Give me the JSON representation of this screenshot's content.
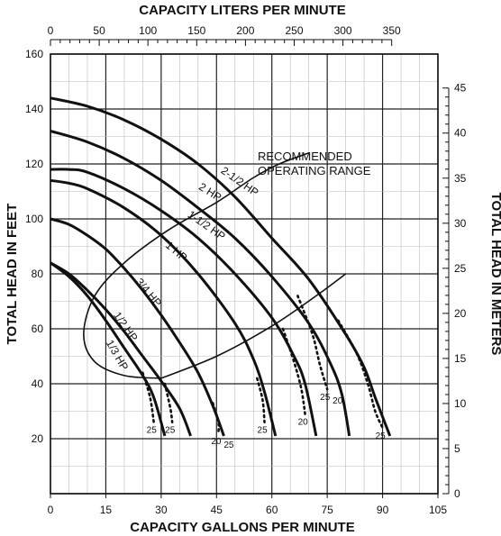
{
  "chart_data": {
    "type": "line",
    "xlabel_bottom": "CAPACITY GALLONS PER MINUTE",
    "xlabel_top": "CAPACITY LITERS PER MINUTE",
    "ylabel_left": "TOTAL HEAD IN FEET",
    "ylabel_right": "TOTAL HEAD IN METERS",
    "xlim": [
      0,
      105
    ],
    "ylim": [
      20,
      160
    ],
    "x_ticks": [
      "0",
      "15",
      "30",
      "45",
      "60",
      "75",
      "90",
      "105"
    ],
    "y_ticks": [
      "20",
      "40",
      "60",
      "80",
      "100",
      "120",
      "140",
      "160"
    ],
    "top_ticks": [
      "0",
      "50",
      "100",
      "150",
      "200",
      "250",
      "300",
      "350"
    ],
    "right_ticks": [
      "0",
      "5",
      "10",
      "15",
      "20",
      "25",
      "30",
      "35",
      "40",
      "45"
    ],
    "grid": true,
    "series": [
      {
        "name": "1/3 HP",
        "points": [
          [
            0,
            84
          ],
          [
            5,
            79
          ],
          [
            10,
            72
          ],
          [
            15,
            63
          ],
          [
            20,
            53
          ],
          [
            25,
            43
          ],
          [
            28,
            35
          ],
          [
            31,
            21
          ]
        ],
        "dotted": [
          [
            25,
            44
          ],
          [
            27,
            35
          ],
          [
            28,
            26
          ]
        ],
        "dotted_labels": [
          "25"
        ]
      },
      {
        "name": "1/2 HP",
        "points": [
          [
            0,
            84
          ],
          [
            5,
            80
          ],
          [
            10,
            74
          ],
          [
            15,
            67
          ],
          [
            20,
            59
          ],
          [
            25,
            50
          ],
          [
            30,
            41
          ],
          [
            35,
            31
          ],
          [
            38,
            21
          ]
        ],
        "dotted": [
          [
            31,
            40
          ],
          [
            32.5,
            31
          ],
          [
            33,
            26
          ]
        ],
        "dotted_labels": [
          "25"
        ]
      },
      {
        "name": "3/4 HP",
        "points": [
          [
            0,
            100
          ],
          [
            5,
            98
          ],
          [
            10,
            94
          ],
          [
            15,
            89
          ],
          [
            20,
            82
          ],
          [
            25,
            74
          ],
          [
            30,
            65
          ],
          [
            35,
            55
          ],
          [
            40,
            44
          ],
          [
            44,
            32
          ],
          [
            47,
            21
          ]
        ],
        "dotted": [
          [
            44,
            33
          ],
          [
            45.5,
            26
          ],
          [
            45.5,
            22
          ]
        ],
        "dotted_labels": [
          "20",
          "25"
        ]
      },
      {
        "name": "1 HP",
        "points": [
          [
            0,
            114
          ],
          [
            5,
            113
          ],
          [
            10,
            111
          ],
          [
            20,
            104
          ],
          [
            30,
            94
          ],
          [
            40,
            80
          ],
          [
            50,
            62
          ],
          [
            55,
            49
          ],
          [
            58,
            37
          ],
          [
            61,
            21
          ]
        ],
        "dotted": [
          [
            56,
            42
          ],
          [
            57.5,
            34
          ],
          [
            58,
            26
          ]
        ],
        "dotted_labels": [
          "25"
        ]
      },
      {
        "name": "1-1/2 HP",
        "points": [
          [
            0,
            118
          ],
          [
            5,
            118
          ],
          [
            10,
            117
          ],
          [
            20,
            111
          ],
          [
            30,
            103
          ],
          [
            40,
            93
          ],
          [
            50,
            80
          ],
          [
            60,
            64
          ],
          [
            66,
            50
          ],
          [
            69,
            40
          ],
          [
            72,
            21
          ]
        ],
        "dotted": [
          [
            63,
            60
          ],
          [
            66,
            48
          ],
          [
            68,
            38
          ],
          [
            69,
            29
          ]
        ],
        "dotted_labels": [
          "20"
        ]
      },
      {
        "name": "2 HP",
        "points": [
          [
            0,
            132
          ],
          [
            10,
            128
          ],
          [
            20,
            122
          ],
          [
            30,
            114
          ],
          [
            40,
            104
          ],
          [
            50,
            93
          ],
          [
            60,
            79
          ],
          [
            70,
            62
          ],
          [
            76,
            47
          ],
          [
            79,
            36
          ],
          [
            81,
            21
          ]
        ],
        "dotted": [
          [
            67,
            72
          ],
          [
            71,
            58
          ],
          [
            73,
            47
          ],
          [
            75,
            38
          ]
        ],
        "dotted_labels": [
          "25",
          "20"
        ]
      },
      {
        "name": "2-1/2 HP",
        "points": [
          [
            0,
            144
          ],
          [
            10,
            141
          ],
          [
            20,
            136
          ],
          [
            30,
            129
          ],
          [
            40,
            120
          ],
          [
            50,
            108
          ],
          [
            60,
            93
          ],
          [
            70,
            78
          ],
          [
            80,
            58
          ],
          [
            85,
            46
          ],
          [
            88,
            35
          ],
          [
            92,
            21
          ]
        ],
        "dotted": [
          [
            78,
            63
          ],
          [
            83,
            51
          ],
          [
            86,
            40
          ],
          [
            88,
            30
          ],
          [
            90,
            24
          ]
        ],
        "dotted_labels": [
          "25"
        ]
      }
    ],
    "recommended_range_label": [
      "RECOMMENDED",
      "OPERATING RANGE"
    ]
  }
}
